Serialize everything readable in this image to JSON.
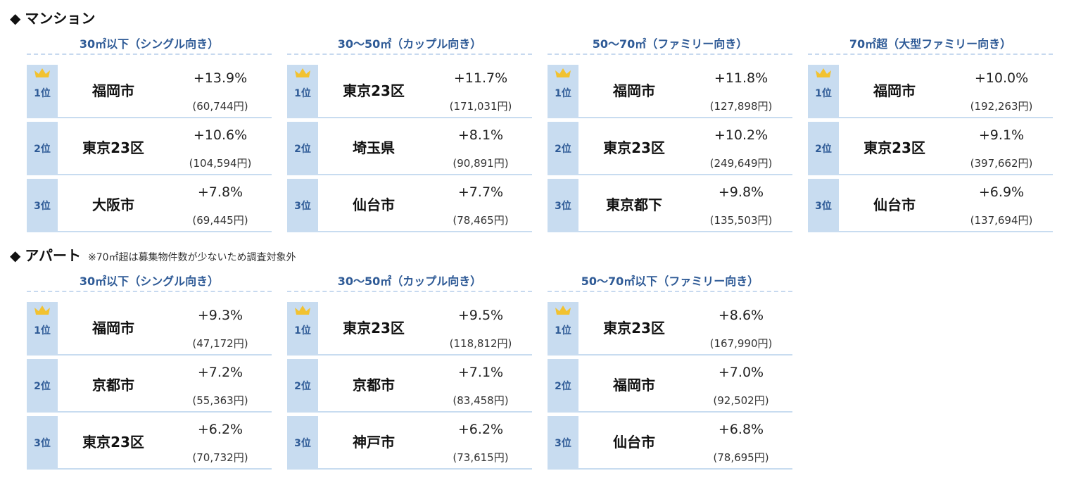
{
  "mansion": {
    "diamond": "◆",
    "title": "マンション",
    "blocks": [
      {
        "header": "30㎡以下（シングル向き）",
        "rows": [
          {
            "rank": "1位",
            "city": "福岡市",
            "change": "+13.9%",
            "price": "(60,744円)"
          },
          {
            "rank": "2位",
            "city": "東京23区",
            "change": "+10.6%",
            "price": "(104,594円)"
          },
          {
            "rank": "3位",
            "city": "大阪市",
            "change": "+7.8%",
            "price": "(69,445円)"
          }
        ]
      },
      {
        "header": "30〜50㎡（カップル向き）",
        "rows": [
          {
            "rank": "1位",
            "city": "東京23区",
            "change": "+11.7%",
            "price": "(171,031円)"
          },
          {
            "rank": "2位",
            "city": "埼玉県",
            "change": "+8.1%",
            "price": "(90,891円)"
          },
          {
            "rank": "3位",
            "city": "仙台市",
            "change": "+7.7%",
            "price": "(78,465円)"
          }
        ]
      },
      {
        "header": "50〜70㎡（ファミリー向き）",
        "rows": [
          {
            "rank": "1位",
            "city": "福岡市",
            "change": "+11.8%",
            "price": "(127,898円)"
          },
          {
            "rank": "2位",
            "city": "東京23区",
            "change": "+10.2%",
            "price": "(249,649円)"
          },
          {
            "rank": "3位",
            "city": "東京都下",
            "change": "+9.8%",
            "price": "(135,503円)"
          }
        ]
      },
      {
        "header": "70㎡超（大型ファミリー向き）",
        "rows": [
          {
            "rank": "1位",
            "city": "福岡市",
            "change": "+10.0%",
            "price": "(192,263円)"
          },
          {
            "rank": "2位",
            "city": "東京23区",
            "change": "+9.1%",
            "price": "(397,662円)"
          },
          {
            "rank": "3位",
            "city": "仙台市",
            "change": "+6.9%",
            "price": "(137,694円)"
          }
        ]
      }
    ]
  },
  "apartment": {
    "diamond": "◆",
    "title": "アパート",
    "note": "※70㎡超は募集物件数が少ないため調査対象外",
    "blocks": [
      {
        "header": "30㎡以下（シングル向き）",
        "rows": [
          {
            "rank": "1位",
            "city": "福岡市",
            "change": "+9.3%",
            "price": "(47,172円)"
          },
          {
            "rank": "2位",
            "city": "京都市",
            "change": "+7.2%",
            "price": "(55,363円)"
          },
          {
            "rank": "3位",
            "city": "東京23区",
            "change": "+6.2%",
            "price": "(70,732円)"
          }
        ]
      },
      {
        "header": "30〜50㎡（カップル向き）",
        "rows": [
          {
            "rank": "1位",
            "city": "東京23区",
            "change": "+9.5%",
            "price": "(118,812円)"
          },
          {
            "rank": "2位",
            "city": "京都市",
            "change": "+7.1%",
            "price": "(83,458円)"
          },
          {
            "rank": "3位",
            "city": "神戸市",
            "change": "+6.2%",
            "price": "(73,615円)"
          }
        ]
      },
      {
        "header": "50〜70㎡以下（ファミリー向き）",
        "rows": [
          {
            "rank": "1位",
            "city": "東京23区",
            "change": "+8.6%",
            "price": "(167,990円)"
          },
          {
            "rank": "2位",
            "city": "福岡市",
            "change": "+7.0%",
            "price": "(92,502円)"
          },
          {
            "rank": "3位",
            "city": "仙台市",
            "change": "+6.8%",
            "price": "(78,695円)"
          }
        ]
      }
    ]
  },
  "colors": {
    "header_text": "#2e5a96",
    "rank_cell": "#c8dcf0",
    "crown": "#f2c230"
  },
  "icons": {
    "crown": "crown-icon",
    "bullet": "diamond-bullet-icon"
  }
}
